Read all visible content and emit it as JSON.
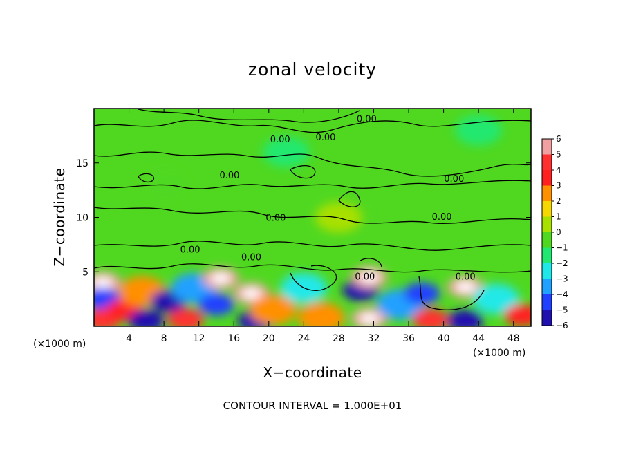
{
  "chart_data": {
    "type": "heatmap",
    "title": "zonal velocity",
    "xlabel": "X−coordinate",
    "ylabel": "Z−coordinate",
    "x_unit_left": "(×1000 m)",
    "x_unit_right": "(×1000 m)",
    "xlim": [
      0,
      50
    ],
    "ylim": [
      0,
      20
    ],
    "x_ticks": [
      4,
      8,
      12,
      16,
      20,
      24,
      28,
      32,
      36,
      40,
      44,
      48
    ],
    "x_tick_labels": [
      "4",
      "8",
      "12",
      "16",
      "20",
      "24",
      "28",
      "32",
      "36",
      "40",
      "44",
      "48"
    ],
    "y_ticks": [
      5,
      10,
      15
    ],
    "y_tick_labels": [
      "5",
      "10",
      "15"
    ],
    "colorbar": {
      "values": [
        6,
        5,
        4,
        3,
        2,
        1,
        0,
        -1,
        -2,
        -3,
        -4,
        -5,
        -6
      ],
      "labels": [
        "6",
        "5",
        "4",
        "3",
        "2",
        "1",
        "0",
        "−1",
        "−2",
        "−3",
        "−4",
        "−5",
        "−6"
      ],
      "colors": [
        "#f0a0a0",
        "#ff3030",
        "#ff2020",
        "#ff9000",
        "#f5d800",
        "#a8e000",
        "#50d820",
        "#20e870",
        "#20e8e8",
        "#20a0ff",
        "#2040ff",
        "#2010b0",
        "#7010a0"
      ]
    },
    "contour_labels": [
      {
        "text": "0.00",
        "x": 31.2,
        "y": 19.0
      },
      {
        "text": "0.00",
        "x": 21.3,
        "y": 17.1
      },
      {
        "text": "0.00",
        "x": 26.5,
        "y": 17.3
      },
      {
        "text": "0.00",
        "x": 15.5,
        "y": 13.8
      },
      {
        "text": "0.00",
        "x": 41.2,
        "y": 13.5
      },
      {
        "text": "0.00",
        "x": 20.8,
        "y": 9.9
      },
      {
        "text": "0.00",
        "x": 39.8,
        "y": 10.0
      },
      {
        "text": "0.00",
        "x": 11.0,
        "y": 7.0
      },
      {
        "text": "0.00",
        "x": 18.0,
        "y": 6.3
      },
      {
        "text": "0.00",
        "x": 31.0,
        "y": 4.5
      },
      {
        "text": "0.00",
        "x": 42.5,
        "y": 4.5
      }
    ],
    "contour_interval_text": "CONTOUR INTERVAL = 1.000E+01",
    "features": [
      {
        "x": 1,
        "z": 4,
        "value": 6
      },
      {
        "x": 1,
        "z": 2.5,
        "value": -4
      },
      {
        "x": 1,
        "z": 0.6,
        "value": 5
      },
      {
        "x": 3.5,
        "z": 1.5,
        "value": 4
      },
      {
        "x": 5.5,
        "z": 3.2,
        "value": 3
      },
      {
        "x": 6,
        "z": 0.5,
        "value": -5
      },
      {
        "x": 8.5,
        "z": 2.3,
        "value": -5
      },
      {
        "x": 10.5,
        "z": 0.6,
        "value": 5
      },
      {
        "x": 11.5,
        "z": 3.5,
        "value": -3
      },
      {
        "x": 14.5,
        "z": 4.4,
        "value": 6
      },
      {
        "x": 14,
        "z": 2,
        "value": -4
      },
      {
        "x": 18,
        "z": 3,
        "value": 6
      },
      {
        "x": 18.5,
        "z": 0.5,
        "value": -5
      },
      {
        "x": 20.5,
        "z": 1.5,
        "value": 3
      },
      {
        "x": 24,
        "z": 3.5,
        "value": -2
      },
      {
        "x": 26,
        "z": 0.8,
        "value": 3
      },
      {
        "x": 30.5,
        "z": 3.3,
        "value": -5
      },
      {
        "x": 31.5,
        "z": 4.5,
        "value": 6
      },
      {
        "x": 31.5,
        "z": 0.7,
        "value": 6
      },
      {
        "x": 35,
        "z": 2,
        "value": -3
      },
      {
        "x": 38.5,
        "z": 0.6,
        "value": 5
      },
      {
        "x": 37.5,
        "z": 3,
        "value": -4
      },
      {
        "x": 42.5,
        "z": 3.6,
        "value": 6
      },
      {
        "x": 42.5,
        "z": 0.5,
        "value": -5
      },
      {
        "x": 46,
        "z": 2.5,
        "value": -2
      },
      {
        "x": 49,
        "z": 1,
        "value": 4
      },
      {
        "x": 22,
        "z": 16,
        "value": -1
      },
      {
        "x": 8,
        "z": 13,
        "value": 0
      },
      {
        "x": 44,
        "z": 18,
        "value": -1
      },
      {
        "x": 28,
        "z": 10,
        "value": 1
      }
    ]
  }
}
